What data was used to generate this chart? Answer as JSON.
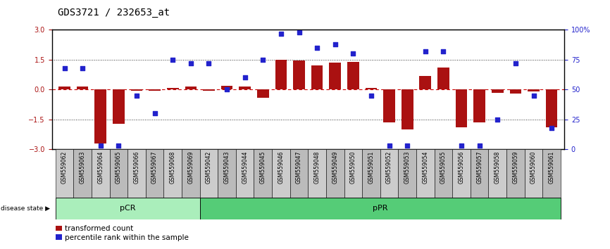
{
  "title": "GDS3721 / 232653_at",
  "samples": [
    "GSM559062",
    "GSM559063",
    "GSM559064",
    "GSM559065",
    "GSM559066",
    "GSM559067",
    "GSM559068",
    "GSM559069",
    "GSM559042",
    "GSM559043",
    "GSM559044",
    "GSM559045",
    "GSM559046",
    "GSM559047",
    "GSM559048",
    "GSM559049",
    "GSM559050",
    "GSM559051",
    "GSM559052",
    "GSM559053",
    "GSM559054",
    "GSM559055",
    "GSM559056",
    "GSM559057",
    "GSM559058",
    "GSM559059",
    "GSM559060",
    "GSM559061"
  ],
  "bar_values": [
    0.15,
    0.15,
    -2.7,
    -1.7,
    -0.05,
    -0.05,
    0.1,
    0.15,
    -0.05,
    0.2,
    0.15,
    -0.4,
    1.5,
    1.45,
    1.2,
    1.35,
    1.4,
    0.1,
    -1.65,
    -2.0,
    0.7,
    1.1,
    -1.9,
    -1.65,
    -0.15,
    -0.2,
    -0.1,
    -1.9
  ],
  "dot_values": [
    68,
    68,
    3,
    3,
    45,
    30,
    75,
    72,
    72,
    50,
    60,
    75,
    97,
    98,
    85,
    88,
    80,
    45,
    3,
    3,
    82,
    82,
    3,
    3,
    25,
    72,
    45,
    18
  ],
  "pCR_count": 8,
  "pPR_count": 20,
  "ylim": [
    -3,
    3
  ],
  "yticks": [
    -3,
    -1.5,
    0,
    1.5,
    3
  ],
  "right_yticks": [
    0,
    25,
    50,
    75,
    100
  ],
  "bar_color": "#AA1111",
  "dot_color": "#2222CC",
  "pCR_color": "#AAEEBB",
  "pPR_color": "#55CC77",
  "sample_bg_even": "#CCCCCC",
  "sample_bg_odd": "#BBBBBB",
  "hline_color": "#CC0000",
  "dotline_color": "#333333",
  "title_fontsize": 10,
  "tick_fontsize": 7,
  "label_fontsize": 5.5,
  "legend_fontsize": 7.5,
  "ds_fontsize": 8
}
